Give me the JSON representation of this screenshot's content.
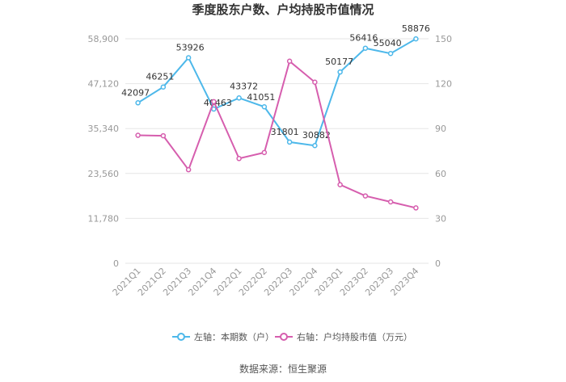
{
  "chart_data": {
    "type": "line",
    "title": "季度股东户数、户均持股市值情况",
    "categories": [
      "2021Q1",
      "2021Q2",
      "2021Q3",
      "2021Q4",
      "2022Q1",
      "2022Q2",
      "2022Q3",
      "2022Q4",
      "2023Q1",
      "2023Q2",
      "2023Q3",
      "2023Q4"
    ],
    "left_axis": {
      "ticks": [
        "0",
        "11,780",
        "23,560",
        "35,340",
        "47,120",
        "58,900"
      ],
      "range": [
        0,
        58900
      ]
    },
    "right_axis": {
      "ticks": [
        "0",
        "30",
        "60",
        "90",
        "120",
        "150"
      ],
      "range": [
        0,
        150
      ]
    },
    "series": [
      {
        "name": "左轴：本期数（户）",
        "axis": "left",
        "color": "#4db8ea",
        "values": [
          42097,
          46251,
          53926,
          40463,
          43372,
          41051,
          31801,
          30882,
          50177,
          56416,
          55040,
          58876
        ],
        "labels": [
          "42097",
          "46251",
          "53926",
          "40463",
          "43372",
          "41051",
          "31801",
          "30882",
          "50177",
          "56416",
          "55040",
          "58876"
        ]
      },
      {
        "name": "右轴：户均持股市值（万元）",
        "axis": "right",
        "color": "#d65eae",
        "values": [
          85.5,
          85.2,
          62.5,
          108,
          70,
          74,
          135,
          121,
          52.5,
          45,
          41,
          37
        ]
      }
    ],
    "legend_position": "bottom",
    "grid": true
  },
  "source": "数据来源：恒生聚源"
}
